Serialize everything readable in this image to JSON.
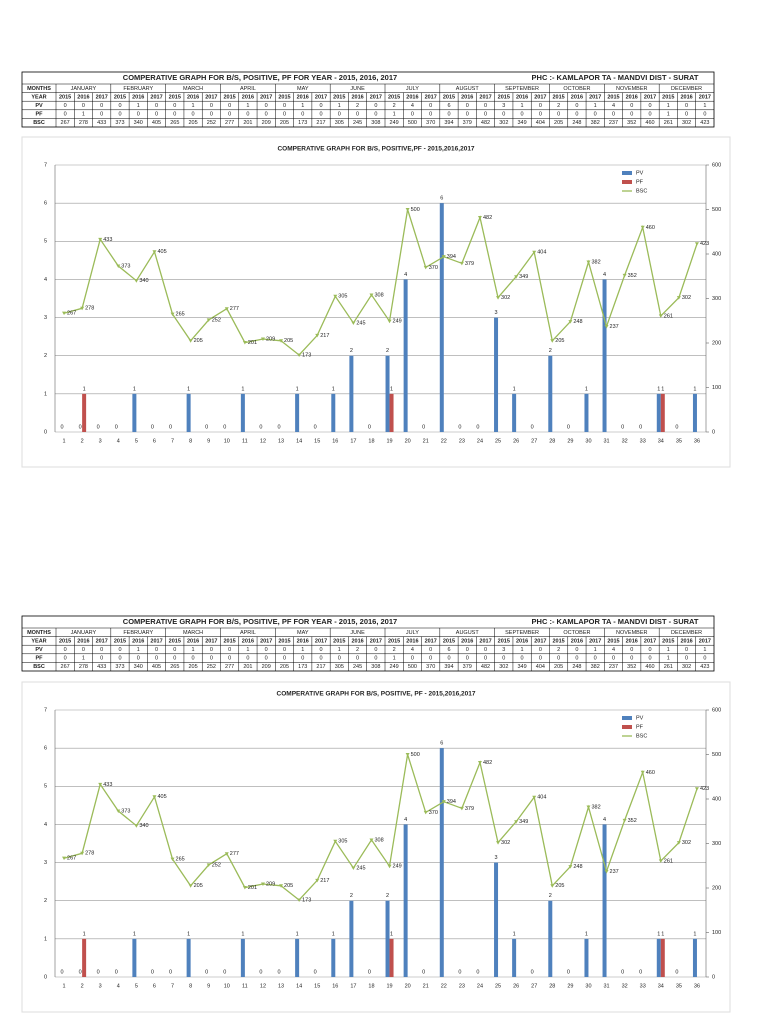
{
  "tables": [
    {
      "title": "COMPERATIVE GRAPH FOR B/S, POSITIVE, PF FOR YEAR  - 2015, 2016, 2017",
      "location": "PHC :- KAMLAPOR    TA - MANDVI   DIST - SURAT",
      "row_labels": [
        "MONTHS",
        "YEAR",
        "PV",
        "PF",
        "BSC"
      ],
      "months": [
        "JANUARY",
        "FEBRUARY",
        "MARCH",
        "APRIL",
        "MAY",
        "JUNE",
        "JULY",
        "AUGUST",
        "SEPTEMBER",
        "OCTOBER",
        "NOVEMBER",
        "DECEMBER"
      ],
      "years": [
        2015,
        2016,
        2017,
        2015,
        2016,
        2017,
        2015,
        2016,
        2017,
        2015,
        2016,
        2017,
        2015,
        2016,
        2017,
        2015,
        2016,
        2017,
        2015,
        2016,
        2017,
        2015,
        2016,
        2017,
        2015,
        2016,
        2017,
        2015,
        2016,
        2017,
        2015,
        2016,
        2017,
        2015,
        2016,
        2017
      ],
      "pv": [
        0,
        0,
        0,
        0,
        1,
        0,
        0,
        1,
        0,
        0,
        1,
        0,
        0,
        1,
        0,
        1,
        2,
        0,
        2,
        4,
        0,
        6,
        0,
        0,
        3,
        1,
        0,
        2,
        0,
        1,
        4,
        0,
        0,
        1,
        0,
        1
      ],
      "pf": [
        0,
        1,
        0,
        0,
        0,
        0,
        0,
        0,
        0,
        0,
        0,
        0,
        0,
        0,
        0,
        0,
        0,
        0,
        1,
        0,
        0,
        0,
        0,
        0,
        0,
        0,
        0,
        0,
        0,
        0,
        0,
        0,
        0,
        1,
        0,
        0
      ],
      "bsc": [
        267,
        278,
        433,
        373,
        340,
        405,
        265,
        205,
        252,
        277,
        201,
        209,
        205,
        173,
        217,
        305,
        245,
        308,
        249,
        500,
        370,
        394,
        379,
        482,
        302,
        349,
        404,
        205,
        248,
        382,
        237,
        352,
        460,
        261,
        302,
        423
      ]
    },
    {
      "title": "COMPERATIVE GRAPH FOR B/S, POSITIVE, PF FOR YEAR  - 2015, 2016, 2017",
      "location": "PHC :- KAMLAPOR    TA - MANDVI   DIST - SURAT",
      "row_labels": [
        "MONTHS",
        "YEAR",
        "PV",
        "PF",
        "BSC"
      ],
      "months": [
        "JANUARY",
        "FEBRUARY",
        "MARCH",
        "APRIL",
        "MAY",
        "JUNE",
        "JULY",
        "AUGUST",
        "SEPTEMBER",
        "OCTOBER",
        "NOVEMBER",
        "DECEMBER"
      ],
      "years": [
        2015,
        2016,
        2017,
        2015,
        2016,
        2017,
        2015,
        2016,
        2017,
        2015,
        2016,
        2017,
        2015,
        2016,
        2017,
        2015,
        2016,
        2017,
        2015,
        2016,
        2017,
        2015,
        2016,
        2017,
        2015,
        2016,
        2017,
        2015,
        2016,
        2017,
        2015,
        2016,
        2017,
        2015,
        2016,
        2017
      ],
      "pv": [
        0,
        0,
        0,
        0,
        1,
        0,
        0,
        1,
        0,
        0,
        1,
        0,
        0,
        1,
        0,
        1,
        2,
        0,
        2,
        4,
        0,
        6,
        0,
        0,
        3,
        1,
        0,
        2,
        0,
        1,
        4,
        0,
        0,
        1,
        0,
        1
      ],
      "pf": [
        0,
        1,
        0,
        0,
        0,
        0,
        0,
        0,
        0,
        0,
        0,
        0,
        0,
        0,
        0,
        0,
        0,
        0,
        1,
        0,
        0,
        0,
        0,
        0,
        0,
        0,
        0,
        0,
        0,
        0,
        0,
        0,
        0,
        1,
        0,
        0
      ],
      "bsc": [
        267,
        278,
        433,
        373,
        340,
        405,
        265,
        205,
        252,
        277,
        201,
        209,
        205,
        173,
        217,
        305,
        245,
        308,
        249,
        500,
        370,
        394,
        379,
        482,
        302,
        349,
        404,
        205,
        248,
        382,
        237,
        352,
        460,
        261,
        302,
        423
      ]
    }
  ],
  "chart_data": [
    {
      "type": "bar",
      "title": "COMPERATIVE GRAPH FOR B/S, POSITIVE,PF - 2015,2016,2017",
      "categories": [
        "1",
        "2",
        "3",
        "4",
        "5",
        "6",
        "7",
        "8",
        "9",
        "10",
        "11",
        "12",
        "13",
        "14",
        "15",
        "16",
        "17",
        "18",
        "19",
        "20",
        "21",
        "22",
        "23",
        "24",
        "25",
        "26",
        "27",
        "28",
        "29",
        "30",
        "31",
        "32",
        "33",
        "34",
        "35",
        "36"
      ],
      "series": [
        {
          "name": "PV",
          "color": "#4f81bd",
          "values": [
            0,
            0,
            0,
            0,
            1,
            0,
            0,
            1,
            0,
            0,
            1,
            0,
            0,
            1,
            0,
            1,
            2,
            0,
            2,
            4,
            0,
            6,
            0,
            0,
            3,
            1,
            0,
            2,
            0,
            1,
            4,
            0,
            0,
            1,
            0,
            1
          ]
        },
        {
          "name": "PF",
          "color": "#c0504d",
          "values": [
            0,
            1,
            0,
            0,
            0,
            0,
            0,
            0,
            0,
            0,
            0,
            0,
            0,
            0,
            0,
            0,
            0,
            0,
            1,
            0,
            0,
            0,
            0,
            0,
            0,
            0,
            0,
            0,
            0,
            0,
            0,
            0,
            0,
            1,
            0,
            0
          ]
        },
        {
          "name": "BSC",
          "color": "#9bbb59",
          "type": "line",
          "axis": "y2",
          "values": [
            267,
            278,
            433,
            373,
            340,
            405,
            265,
            205,
            252,
            277,
            201,
            209,
            205,
            173,
            217,
            305,
            245,
            308,
            249,
            500,
            370,
            394,
            379,
            482,
            302,
            349,
            404,
            205,
            248,
            382,
            237,
            352,
            460,
            261,
            302,
            423
          ]
        }
      ],
      "ylim": [
        0,
        7
      ],
      "yticks": [
        0,
        1,
        2,
        3,
        4,
        5,
        6,
        7
      ],
      "y2lim": [
        0,
        600
      ],
      "y2ticks": [
        0,
        100,
        200,
        300,
        400,
        500,
        600
      ],
      "grid": true,
      "legend": "top-right"
    },
    {
      "type": "bar",
      "title": "COMPERATIVE GRAPH FOR B/S, POSITIVE, PF - 2015,2016,2017",
      "categories": [
        "1",
        "2",
        "3",
        "4",
        "5",
        "6",
        "7",
        "8",
        "9",
        "10",
        "11",
        "12",
        "13",
        "14",
        "15",
        "16",
        "17",
        "18",
        "19",
        "20",
        "21",
        "22",
        "23",
        "24",
        "25",
        "26",
        "27",
        "28",
        "29",
        "30",
        "31",
        "32",
        "33",
        "34",
        "35",
        "36"
      ],
      "series": [
        {
          "name": "PV",
          "color": "#4f81bd",
          "values": [
            0,
            0,
            0,
            0,
            1,
            0,
            0,
            1,
            0,
            0,
            1,
            0,
            0,
            1,
            0,
            1,
            2,
            0,
            2,
            4,
            0,
            6,
            0,
            0,
            3,
            1,
            0,
            2,
            0,
            1,
            4,
            0,
            0,
            1,
            0,
            1
          ]
        },
        {
          "name": "PF",
          "color": "#c0504d",
          "values": [
            0,
            1,
            0,
            0,
            0,
            0,
            0,
            0,
            0,
            0,
            0,
            0,
            0,
            0,
            0,
            0,
            0,
            0,
            1,
            0,
            0,
            0,
            0,
            0,
            0,
            0,
            0,
            0,
            0,
            0,
            0,
            0,
            0,
            1,
            0,
            0
          ]
        },
        {
          "name": "BSC",
          "color": "#9bbb59",
          "type": "line",
          "axis": "y2",
          "values": [
            267,
            278,
            433,
            373,
            340,
            405,
            265,
            205,
            252,
            277,
            201,
            209,
            205,
            173,
            217,
            305,
            245,
            308,
            249,
            500,
            370,
            394,
            379,
            482,
            302,
            349,
            404,
            205,
            248,
            382,
            237,
            352,
            460,
            261,
            302,
            423
          ]
        }
      ],
      "ylim": [
        0,
        7
      ],
      "yticks": [
        0,
        1,
        2,
        3,
        4,
        5,
        6,
        7
      ],
      "y2lim": [
        0,
        600
      ],
      "y2ticks": [
        0,
        100,
        200,
        300,
        400,
        500,
        600
      ],
      "grid": true,
      "legend": "top-right"
    }
  ]
}
